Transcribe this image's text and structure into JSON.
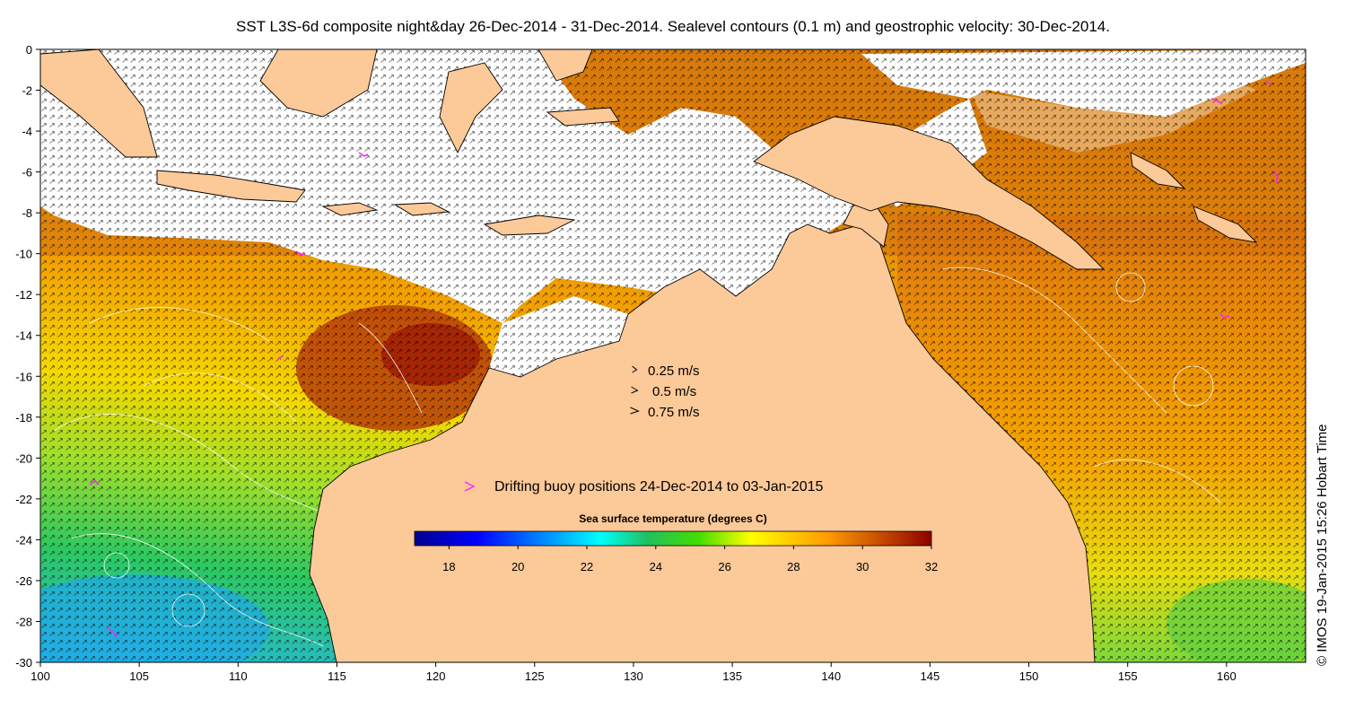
{
  "title": "SST L3S-6d composite night&day 26-Dec-2014 - 31-Dec-2014. Sealevel contours (0.1 m) and geostrophic velocity: 30-Dec-2014.",
  "credit": "© IMOS 19-Jan-2015 15:26 Hobart Time",
  "axes": {
    "x_ticks": [
      "100",
      "105",
      "110",
      "115",
      "120",
      "125",
      "130",
      "135",
      "140",
      "145",
      "150",
      "155",
      "160"
    ],
    "y_ticks": [
      "0",
      "-2",
      "-4",
      "-6",
      "-8",
      "-10",
      "-12",
      "-14",
      "-16",
      "-18",
      "-20",
      "-22",
      "-24",
      "-26",
      "-28",
      "-30"
    ],
    "lon_range": [
      100,
      164
    ],
    "lat_range": [
      -30,
      0
    ]
  },
  "velocity_legend": [
    {
      "label": "0.25 m/s",
      "speed": 0.25
    },
    {
      "label": "0.5 m/s",
      "speed": 0.5
    },
    {
      "label": "0.75 m/s",
      "speed": 0.75
    }
  ],
  "buoy_legend": {
    "label": "Drifting buoy positions 24-Dec-2014 to 03-Jan-2015",
    "color": "#ff22ff"
  },
  "colorbar": {
    "title": "Sea surface temperature (degrees C)",
    "ticks": [
      "18",
      "20",
      "22",
      "24",
      "26",
      "28",
      "30",
      "32"
    ],
    "range": [
      17,
      32
    ],
    "colormap": "jet"
  },
  "colors": {
    "land": "#fcc999",
    "missing": "#ffffff",
    "coastline": "#000000"
  }
}
